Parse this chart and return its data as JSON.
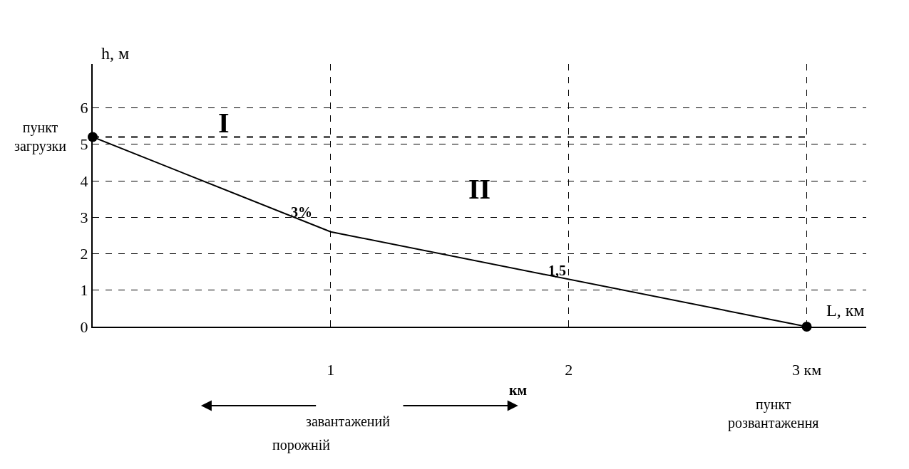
{
  "chart_data": {
    "type": "line",
    "xlabel": "L, км",
    "ylabel": "h, м",
    "x": [
      0,
      1,
      3
    ],
    "series": [
      {
        "color": "#000000",
        "values": [
          5.2,
          2.6,
          0
        ]
      },
      {
        "type": "scatter",
        "marker": "circle",
        "x": [
          0,
          3
        ],
        "color": "#000000",
        "values": [
          5.2,
          0
        ]
      }
    ],
    "xlim": [
      0,
      3.25
    ],
    "ylim": [
      0,
      7.2
    ],
    "xticks": [
      {
        "value": 1,
        "label": "1"
      },
      {
        "value": 2,
        "label": "2"
      },
      {
        "value": 3,
        "label": "3 км"
      }
    ],
    "yticks": [
      0,
      1,
      2,
      3,
      4,
      5,
      6
    ],
    "grid": true,
    "line_style": "solid",
    "ref_lines": [
      {
        "axis": "y",
        "value": 5.2,
        "color": "#000000",
        "line_style": "dashed"
      }
    ],
    "annotations": [
      "пункт загрузки",
      "пункт розвантаження",
      "I",
      "II",
      "3%",
      "1,5",
      "завантажений",
      "порожній",
      "км"
    ]
  }
}
